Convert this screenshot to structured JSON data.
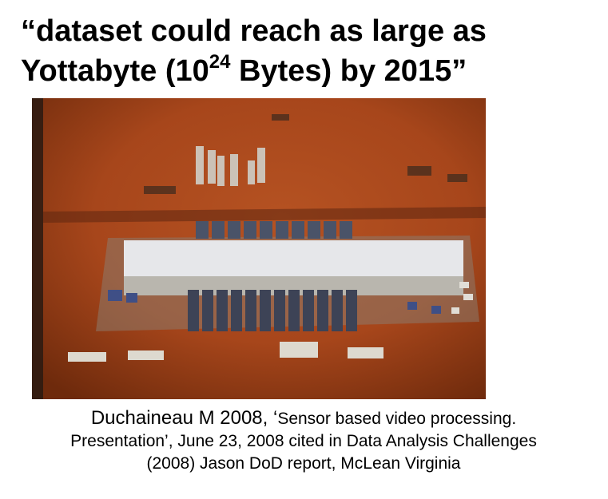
{
  "title": {
    "line1": "“dataset could reach as large as",
    "line2_prefix": "Yottabyte (10",
    "line2_exponent": "24",
    "line2_suffix": " Bytes) by 2015”"
  },
  "photo": {
    "subject": "aerial-photo-data-center",
    "colors": {
      "ground": "#a7461b",
      "ground_dark": "#6e2a0c",
      "roof": "#e6e7ea",
      "frame": "#2a1a12"
    }
  },
  "citation": {
    "author": "Duchaineau  M 2008, ‘",
    "line1": "Sensor based video processing.",
    "line2": "Presentation’, June 23, 2008 cited in Data Analysis Challenges",
    "line3": "(2008) Jason DoD report, McLean Virginia"
  }
}
